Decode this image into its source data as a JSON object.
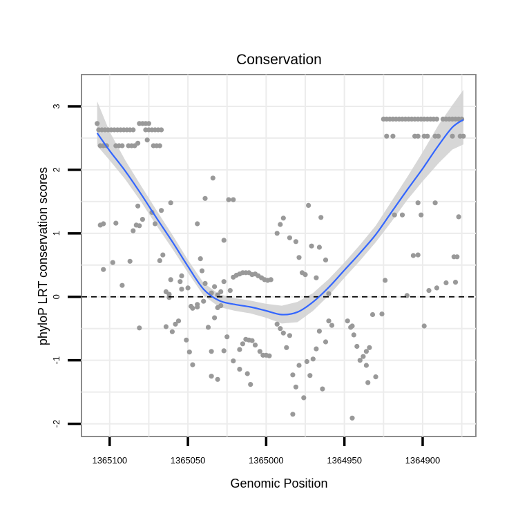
{
  "chart_data": {
    "type": "scatter",
    "title": "Conservation",
    "xlabel": "Genomic Position",
    "ylabel": "phyloP LRT conservation scores",
    "x_reversed": true,
    "xlim": [
      1365118,
      1364866
    ],
    "ylim": [
      -2.2,
      3.5
    ],
    "x_ticks": [
      1365100,
      1365050,
      1365000,
      1364950,
      1364900
    ],
    "x_tick_labels": [
      "1365100",
      "1365050",
      "1365000",
      "1364950",
      "1364900"
    ],
    "y_ticks": [
      -2,
      -1,
      0,
      1,
      2,
      3
    ],
    "y_tick_labels": [
      "-2",
      "-1",
      "0",
      "1",
      "2",
      "3"
    ],
    "grid": true,
    "reference_line": {
      "y": 0,
      "style": "dashed"
    },
    "colors": {
      "points": "#999999",
      "smooth": "#3366ff",
      "band": "#d3d3d3",
      "grid": "#ececec",
      "border": "#7f7f7f"
    },
    "points": [
      {
        "x": 1365108,
        "y": 2.73
      },
      {
        "x": 1365107,
        "y": 2.63
      },
      {
        "x": 1365105,
        "y": 2.63
      },
      {
        "x": 1365103,
        "y": 2.63
      },
      {
        "x": 1365101,
        "y": 2.63
      },
      {
        "x": 1365099,
        "y": 2.63
      },
      {
        "x": 1365097,
        "y": 2.63
      },
      {
        "x": 1365095,
        "y": 2.63
      },
      {
        "x": 1365093,
        "y": 2.63
      },
      {
        "x": 1365091,
        "y": 2.63
      },
      {
        "x": 1365089,
        "y": 2.63
      },
      {
        "x": 1365087,
        "y": 2.63
      },
      {
        "x": 1365085,
        "y": 2.63
      },
      {
        "x": 1365077,
        "y": 2.63
      },
      {
        "x": 1365075,
        "y": 2.63
      },
      {
        "x": 1365073,
        "y": 2.63
      },
      {
        "x": 1365071,
        "y": 2.63
      },
      {
        "x": 1365069,
        "y": 2.63
      },
      {
        "x": 1365067,
        "y": 2.63
      },
      {
        "x": 1365081,
        "y": 2.73
      },
      {
        "x": 1365079,
        "y": 2.73
      },
      {
        "x": 1365077,
        "y": 2.73
      },
      {
        "x": 1365075,
        "y": 2.73
      },
      {
        "x": 1365106,
        "y": 2.38
      },
      {
        "x": 1365104,
        "y": 2.38
      },
      {
        "x": 1365102,
        "y": 2.38
      },
      {
        "x": 1365096,
        "y": 2.38
      },
      {
        "x": 1365094,
        "y": 2.38
      },
      {
        "x": 1365092,
        "y": 2.38
      },
      {
        "x": 1365088,
        "y": 2.38
      },
      {
        "x": 1365086,
        "y": 2.38
      },
      {
        "x": 1365084,
        "y": 2.38
      },
      {
        "x": 1365082,
        "y": 2.42
      },
      {
        "x": 1365076,
        "y": 2.47
      },
      {
        "x": 1365072,
        "y": 2.38
      },
      {
        "x": 1365070,
        "y": 2.38
      },
      {
        "x": 1365068,
        "y": 2.38
      },
      {
        "x": 1365106,
        "y": 1.13
      },
      {
        "x": 1365104,
        "y": 1.15
      },
      {
        "x": 1365096,
        "y": 1.16
      },
      {
        "x": 1365085,
        "y": 1.04
      },
      {
        "x": 1365083,
        "y": 1.13
      },
      {
        "x": 1365081,
        "y": 1.12
      },
      {
        "x": 1365079,
        "y": 1.22
      },
      {
        "x": 1365082,
        "y": 1.43
      },
      {
        "x": 1365071,
        "y": 1.15
      },
      {
        "x": 1365073,
        "y": 1.33
      },
      {
        "x": 1365067,
        "y": 1.36
      },
      {
        "x": 1365061,
        "y": 1.48
      },
      {
        "x": 1365104,
        "y": 0.43
      },
      {
        "x": 1365098,
        "y": 0.54
      },
      {
        "x": 1365092,
        "y": 0.18
      },
      {
        "x": 1365087,
        "y": 0.56
      },
      {
        "x": 1365068,
        "y": 0.57
      },
      {
        "x": 1365066,
        "y": 0.66
      },
      {
        "x": 1365064,
        "y": 0.08
      },
      {
        "x": 1365062,
        "y": 0.04
      },
      {
        "x": 1365061,
        "y": 0.27
      },
      {
        "x": 1365055,
        "y": 0.24
      },
      {
        "x": 1365054,
        "y": 0.33
      },
      {
        "x": 1365050,
        "y": 0.14
      },
      {
        "x": 1365048,
        "y": -0.15
      },
      {
        "x": 1365047,
        "y": -0.18
      },
      {
        "x": 1365044,
        "y": -0.16
      },
      {
        "x": 1365042,
        "y": 0.6
      },
      {
        "x": 1365041,
        "y": 0.41
      },
      {
        "x": 1365039,
        "y": 0.21
      },
      {
        "x": 1365035,
        "y": 0.06
      },
      {
        "x": 1365033,
        "y": 0.16
      },
      {
        "x": 1365031,
        "y": 0.03
      },
      {
        "x": 1365029,
        "y": 0.08
      },
      {
        "x": 1365027,
        "y": 0.24
      },
      {
        "x": 1365023,
        "y": 0.1
      },
      {
        "x": 1365021,
        "y": 0.31
      },
      {
        "x": 1365019,
        "y": 0.34
      },
      {
        "x": 1365017,
        "y": 0.36
      },
      {
        "x": 1365015,
        "y": 0.38
      },
      {
        "x": 1365013,
        "y": 0.38
      },
      {
        "x": 1365011,
        "y": 0.38
      },
      {
        "x": 1365009,
        "y": 0.35
      },
      {
        "x": 1365007,
        "y": 0.36
      },
      {
        "x": 1365005,
        "y": 0.33
      },
      {
        "x": 1365003,
        "y": 0.3
      },
      {
        "x": 1365001,
        "y": 0.27
      },
      {
        "x": 1364999,
        "y": 0.26
      },
      {
        "x": 1364997,
        "y": 0.27
      },
      {
        "x": 1365044,
        "y": 1.15
      },
      {
        "x": 1365039,
        "y": 1.55
      },
      {
        "x": 1365034,
        "y": 1.87
      },
      {
        "x": 1365027,
        "y": 0.89
      },
      {
        "x": 1365024,
        "y": 1.53
      },
      {
        "x": 1365021,
        "y": 1.53
      },
      {
        "x": 1365081,
        "y": -0.49
      },
      {
        "x": 1365064,
        "y": -0.47
      },
      {
        "x": 1365062,
        "y": -0.01
      },
      {
        "x": 1365060,
        "y": -0.55
      },
      {
        "x": 1365058,
        "y": -0.43
      },
      {
        "x": 1365056,
        "y": -0.38
      },
      {
        "x": 1365054,
        "y": 0.12
      },
      {
        "x": 1365051,
        "y": -0.68
      },
      {
        "x": 1365049,
        "y": -0.87
      },
      {
        "x": 1365047,
        "y": -1.07
      },
      {
        "x": 1365044,
        "y": -0.12
      },
      {
        "x": 1365040,
        "y": -0.07
      },
      {
        "x": 1365037,
        "y": -0.48
      },
      {
        "x": 1365035,
        "y": -0.86
      },
      {
        "x": 1365033,
        "y": -0.33
      },
      {
        "x": 1365031,
        "y": -0.17
      },
      {
        "x": 1365029,
        "y": -0.14
      },
      {
        "x": 1365035,
        "y": -1.25
      },
      {
        "x": 1365031,
        "y": -1.3
      },
      {
        "x": 1365027,
        "y": -0.85
      },
      {
        "x": 1365025,
        "y": -0.63
      },
      {
        "x": 1365021,
        "y": -1.01
      },
      {
        "x": 1365017,
        "y": -0.83
      },
      {
        "x": 1365015,
        "y": -0.74
      },
      {
        "x": 1365013,
        "y": -0.67
      },
      {
        "x": 1365011,
        "y": -0.68
      },
      {
        "x": 1365009,
        "y": -0.69
      },
      {
        "x": 1365007,
        "y": -0.76
      },
      {
        "x": 1365004,
        "y": -0.86
      },
      {
        "x": 1365002,
        "y": -0.92
      },
      {
        "x": 1365000,
        "y": -0.92
      },
      {
        "x": 1364998,
        "y": -0.93
      },
      {
        "x": 1365017,
        "y": -1.14
      },
      {
        "x": 1365012,
        "y": -1.21
      },
      {
        "x": 1365010,
        "y": -1.38
      },
      {
        "x": 1364993,
        "y": -0.43
      },
      {
        "x": 1364991,
        "y": -0.5
      },
      {
        "x": 1364989,
        "y": -0.57
      },
      {
        "x": 1364987,
        "y": -0.8
      },
      {
        "x": 1364985,
        "y": -0.61
      },
      {
        "x": 1364983,
        "y": -1.23
      },
      {
        "x": 1364981,
        "y": -1.42
      },
      {
        "x": 1364979,
        "y": -1.08
      },
      {
        "x": 1364976,
        "y": -1.59
      },
      {
        "x": 1364974,
        "y": -1.02
      },
      {
        "x": 1364972,
        "y": -1.24
      },
      {
        "x": 1364970,
        "y": -0.98
      },
      {
        "x": 1364968,
        "y": -0.82
      },
      {
        "x": 1364966,
        "y": -0.54
      },
      {
        "x": 1364964,
        "y": -1.45
      },
      {
        "x": 1364962,
        "y": -0.71
      },
      {
        "x": 1364960,
        "y": -0.38
      },
      {
        "x": 1364958,
        "y": -0.45
      },
      {
        "x": 1364983,
        "y": -1.85
      },
      {
        "x": 1364993,
        "y": 1.0
      },
      {
        "x": 1364991,
        "y": 1.14
      },
      {
        "x": 1364989,
        "y": 1.24
      },
      {
        "x": 1364985,
        "y": 0.93
      },
      {
        "x": 1364981,
        "y": 0.87
      },
      {
        "x": 1364979,
        "y": 0.62
      },
      {
        "x": 1364977,
        "y": 0.38
      },
      {
        "x": 1364975,
        "y": 0.35
      },
      {
        "x": 1364973,
        "y": 1.44
      },
      {
        "x": 1364971,
        "y": 0.8
      },
      {
        "x": 1364968,
        "y": 0.3
      },
      {
        "x": 1364966,
        "y": 0.78
      },
      {
        "x": 1364965,
        "y": 1.25
      },
      {
        "x": 1364962,
        "y": 0.58
      },
      {
        "x": 1364960,
        "y": 0.05
      },
      {
        "x": 1364948,
        "y": -0.38
      },
      {
        "x": 1364946,
        "y": -0.48
      },
      {
        "x": 1364944,
        "y": -0.6
      },
      {
        "x": 1364942,
        "y": -0.78
      },
      {
        "x": 1364940,
        "y": -1.0
      },
      {
        "x": 1364938,
        "y": -0.94
      },
      {
        "x": 1364936,
        "y": -0.86
      },
      {
        "x": 1364934,
        "y": -0.8
      },
      {
        "x": 1364932,
        "y": -0.28
      },
      {
        "x": 1364930,
        "y": -1.26
      },
      {
        "x": 1364936,
        "y": -1.08
      },
      {
        "x": 1364935,
        "y": -1.35
      },
      {
        "x": 1364945,
        "y": -1.91
      },
      {
        "x": 1364945,
        "y": -0.46
      },
      {
        "x": 1364925,
        "y": 2.8
      },
      {
        "x": 1364923,
        "y": 2.8
      },
      {
        "x": 1364921,
        "y": 2.8
      },
      {
        "x": 1364919,
        "y": 2.8
      },
      {
        "x": 1364917,
        "y": 2.8
      },
      {
        "x": 1364915,
        "y": 2.8
      },
      {
        "x": 1364913,
        "y": 2.8
      },
      {
        "x": 1364911,
        "y": 2.8
      },
      {
        "x": 1364909,
        "y": 2.8
      },
      {
        "x": 1364907,
        "y": 2.8
      },
      {
        "x": 1364905,
        "y": 2.8
      },
      {
        "x": 1364903,
        "y": 2.8
      },
      {
        "x": 1364901,
        "y": 2.8
      },
      {
        "x": 1364899,
        "y": 2.8
      },
      {
        "x": 1364897,
        "y": 2.8
      },
      {
        "x": 1364895,
        "y": 2.8
      },
      {
        "x": 1364893,
        "y": 2.8
      },
      {
        "x": 1364891,
        "y": 2.8
      },
      {
        "x": 1364887,
        "y": 2.8
      },
      {
        "x": 1364885,
        "y": 2.8
      },
      {
        "x": 1364883,
        "y": 2.8
      },
      {
        "x": 1364881,
        "y": 2.8
      },
      {
        "x": 1364879,
        "y": 2.8
      },
      {
        "x": 1364877,
        "y": 2.8
      },
      {
        "x": 1364875,
        "y": 2.8
      },
      {
        "x": 1364923,
        "y": 2.53
      },
      {
        "x": 1364919,
        "y": 2.53
      },
      {
        "x": 1364905,
        "y": 2.53
      },
      {
        "x": 1364903,
        "y": 2.53
      },
      {
        "x": 1364899,
        "y": 2.53
      },
      {
        "x": 1364897,
        "y": 2.53
      },
      {
        "x": 1364892,
        "y": 2.53
      },
      {
        "x": 1364890,
        "y": 2.53
      },
      {
        "x": 1364881,
        "y": 2.53
      },
      {
        "x": 1364876,
        "y": 2.53
      },
      {
        "x": 1364874,
        "y": 2.53
      },
      {
        "x": 1364918,
        "y": 1.29
      },
      {
        "x": 1364913,
        "y": 1.29
      },
      {
        "x": 1364903,
        "y": 1.48
      },
      {
        "x": 1364901,
        "y": 1.29
      },
      {
        "x": 1364892,
        "y": 1.48
      },
      {
        "x": 1364877,
        "y": 1.26
      },
      {
        "x": 1364906,
        "y": 0.65
      },
      {
        "x": 1364903,
        "y": 0.66
      },
      {
        "x": 1364880,
        "y": 0.63
      },
      {
        "x": 1364878,
        "y": 0.63
      },
      {
        "x": 1364924,
        "y": 0.26
      },
      {
        "x": 1364910,
        "y": 0.02
      },
      {
        "x": 1364896,
        "y": 0.1
      },
      {
        "x": 1364891,
        "y": 0.14
      },
      {
        "x": 1364885,
        "y": 0.22
      },
      {
        "x": 1364879,
        "y": 0.23
      },
      {
        "x": 1364926,
        "y": -0.27
      },
      {
        "x": 1364899,
        "y": -0.46
      }
    ],
    "smooth": [
      {
        "x": 1365108,
        "y": 2.58,
        "lo": 2.38,
        "hi": 3.08
      },
      {
        "x": 1365100,
        "y": 2.3,
        "lo": 2.15,
        "hi": 2.6
      },
      {
        "x": 1365090,
        "y": 1.98,
        "lo": 1.85,
        "hi": 2.15
      },
      {
        "x": 1365080,
        "y": 1.62,
        "lo": 1.5,
        "hi": 1.75
      },
      {
        "x": 1365070,
        "y": 1.24,
        "lo": 1.12,
        "hi": 1.36
      },
      {
        "x": 1365060,
        "y": 0.87,
        "lo": 0.76,
        "hi": 0.98
      },
      {
        "x": 1365050,
        "y": 0.48,
        "lo": 0.38,
        "hi": 0.58
      },
      {
        "x": 1365040,
        "y": 0.12,
        "lo": 0.02,
        "hi": 0.22
      },
      {
        "x": 1365030,
        "y": -0.06,
        "lo": -0.16,
        "hi": 0.04
      },
      {
        "x": 1365020,
        "y": -0.12,
        "lo": -0.22,
        "hi": -0.02
      },
      {
        "x": 1365010,
        "y": -0.16,
        "lo": -0.26,
        "hi": -0.06
      },
      {
        "x": 1365000,
        "y": -0.22,
        "lo": -0.33,
        "hi": -0.11
      },
      {
        "x": 1364990,
        "y": -0.28,
        "lo": -0.42,
        "hi": -0.14
      },
      {
        "x": 1364980,
        "y": -0.24,
        "lo": -0.4,
        "hi": -0.08
      },
      {
        "x": 1364970,
        "y": -0.08,
        "lo": -0.22,
        "hi": 0.06
      },
      {
        "x": 1364960,
        "y": 0.15,
        "lo": 0.02,
        "hi": 0.28
      },
      {
        "x": 1364950,
        "y": 0.42,
        "lo": 0.3,
        "hi": 0.54
      },
      {
        "x": 1364940,
        "y": 0.69,
        "lo": 0.57,
        "hi": 0.82
      },
      {
        "x": 1364930,
        "y": 0.98,
        "lo": 0.86,
        "hi": 1.12
      },
      {
        "x": 1364920,
        "y": 1.33,
        "lo": 1.18,
        "hi": 1.5
      },
      {
        "x": 1364910,
        "y": 1.68,
        "lo": 1.52,
        "hi": 1.88
      },
      {
        "x": 1364900,
        "y": 2.02,
        "lo": 1.82,
        "hi": 2.28
      },
      {
        "x": 1364890,
        "y": 2.38,
        "lo": 2.1,
        "hi": 2.7
      },
      {
        "x": 1364881,
        "y": 2.67,
        "lo": 2.32,
        "hi": 3.02
      },
      {
        "x": 1364874,
        "y": 2.79,
        "lo": 2.4,
        "hi": 3.26
      }
    ]
  }
}
